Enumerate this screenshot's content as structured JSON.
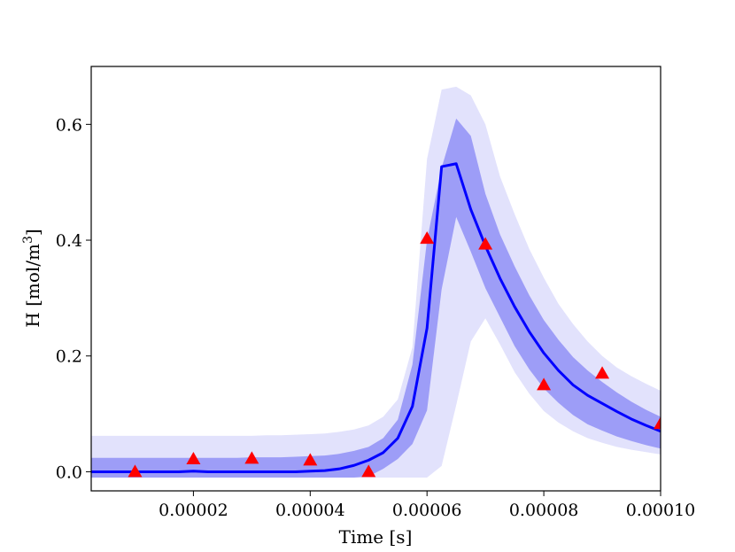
{
  "chart_data": {
    "type": "line",
    "xlabel": "Time [s]",
    "ylabel_main": "H [mol/m",
    "ylabel_sup": "3",
    "ylabel_close": "]",
    "xlim": [
      2.5e-06,
      0.0001
    ],
    "ylim": [
      -0.033,
      0.7
    ],
    "x_ticks": [
      2e-05,
      4e-05,
      6e-05,
      8e-05,
      0.0001
    ],
    "x_tick_labels": [
      "0.00002",
      "0.00004",
      "0.00006",
      "0.00008",
      "0.00010"
    ],
    "y_ticks": [
      0.0,
      0.2,
      0.4,
      0.6
    ],
    "y_tick_labels": [
      "0.0",
      "0.2",
      "0.4",
      "0.6"
    ],
    "grid": false,
    "colors": {
      "mean_line": "#0000ff",
      "inner_band": "#9d9df7",
      "outer_band": "#e2e2fc",
      "observations": "#ff0000"
    },
    "mean": {
      "x": [
        2.5e-06,
        5e-06,
        7.5e-06,
        1e-05,
        1.25e-05,
        1.5e-05,
        1.75e-05,
        2e-05,
        2.25e-05,
        2.5e-05,
        2.75e-05,
        3e-05,
        3.25e-05,
        3.5e-05,
        3.75e-05,
        4e-05,
        4.25e-05,
        4.5e-05,
        4.75e-05,
        5e-05,
        5.25e-05,
        5.5e-05,
        5.75e-05,
        6e-05,
        6.25e-05,
        6.5e-05,
        6.75e-05,
        7e-05,
        7.25e-05,
        7.5e-05,
        7.75e-05,
        8e-05,
        8.25e-05,
        8.5e-05,
        8.75e-05,
        9e-05,
        9.25e-05,
        9.5e-05,
        9.75e-05,
        0.0001
      ],
      "y": [
        0.0,
        0.0,
        0.0,
        0.0,
        0.0,
        0.0,
        0.0,
        0.001,
        0.0,
        0.0,
        0.0,
        0.0,
        0.0,
        0.0,
        0.0,
        0.001,
        0.002,
        0.005,
        0.011,
        0.02,
        0.033,
        0.058,
        0.113,
        0.248,
        0.527,
        0.532,
        0.453,
        0.39,
        0.334,
        0.285,
        0.242,
        0.205,
        0.175,
        0.15,
        0.132,
        0.118,
        0.104,
        0.091,
        0.08,
        0.07
      ]
    },
    "inner_band": {
      "lower": [
        -0.01,
        -0.01,
        -0.01,
        -0.01,
        -0.01,
        -0.01,
        -0.01,
        -0.01,
        -0.01,
        -0.01,
        -0.01,
        -0.01,
        -0.01,
        -0.01,
        -0.01,
        -0.01,
        -0.01,
        -0.01,
        -0.01,
        -0.008,
        0.005,
        0.022,
        0.048,
        0.106,
        0.315,
        0.44,
        0.38,
        0.317,
        0.267,
        0.217,
        0.177,
        0.144,
        0.119,
        0.098,
        0.082,
        0.071,
        0.061,
        0.053,
        0.046,
        0.04
      ],
      "upper": [
        0.024,
        0.024,
        0.024,
        0.024,
        0.024,
        0.024,
        0.024,
        0.024,
        0.024,
        0.024,
        0.024,
        0.025,
        0.025,
        0.025,
        0.026,
        0.027,
        0.028,
        0.031,
        0.036,
        0.043,
        0.058,
        0.09,
        0.185,
        0.4,
        0.525,
        0.61,
        0.58,
        0.48,
        0.41,
        0.355,
        0.305,
        0.262,
        0.228,
        0.198,
        0.175,
        0.155,
        0.137,
        0.121,
        0.107,
        0.095
      ]
    },
    "outer_band": {
      "lower": [
        -0.01,
        -0.01,
        -0.01,
        -0.01,
        -0.01,
        -0.01,
        -0.01,
        -0.01,
        -0.01,
        -0.01,
        -0.01,
        -0.01,
        -0.01,
        -0.01,
        -0.01,
        -0.01,
        -0.01,
        -0.01,
        -0.01,
        -0.01,
        -0.01,
        -0.01,
        -0.01,
        -0.01,
        0.01,
        0.115,
        0.225,
        0.265,
        0.22,
        0.172,
        0.135,
        0.105,
        0.085,
        0.07,
        0.058,
        0.05,
        0.043,
        0.038,
        0.034,
        0.03
      ],
      "upper": [
        0.062,
        0.062,
        0.062,
        0.062,
        0.062,
        0.062,
        0.062,
        0.062,
        0.062,
        0.062,
        0.062,
        0.062,
        0.063,
        0.063,
        0.064,
        0.065,
        0.066,
        0.069,
        0.073,
        0.08,
        0.095,
        0.125,
        0.215,
        0.54,
        0.66,
        0.665,
        0.65,
        0.6,
        0.51,
        0.445,
        0.385,
        0.335,
        0.29,
        0.255,
        0.225,
        0.2,
        0.18,
        0.165,
        0.152,
        0.14
      ]
    },
    "observations": {
      "marker": "triangle",
      "x": [
        1e-05,
        2e-05,
        3e-05,
        4e-05,
        5e-05,
        6e-05,
        7e-05,
        8e-05,
        9e-05,
        0.0001
      ],
      "y": [
        0.0,
        0.022,
        0.023,
        0.02,
        0.0,
        0.403,
        0.393,
        0.15,
        0.17,
        0.083
      ]
    }
  }
}
